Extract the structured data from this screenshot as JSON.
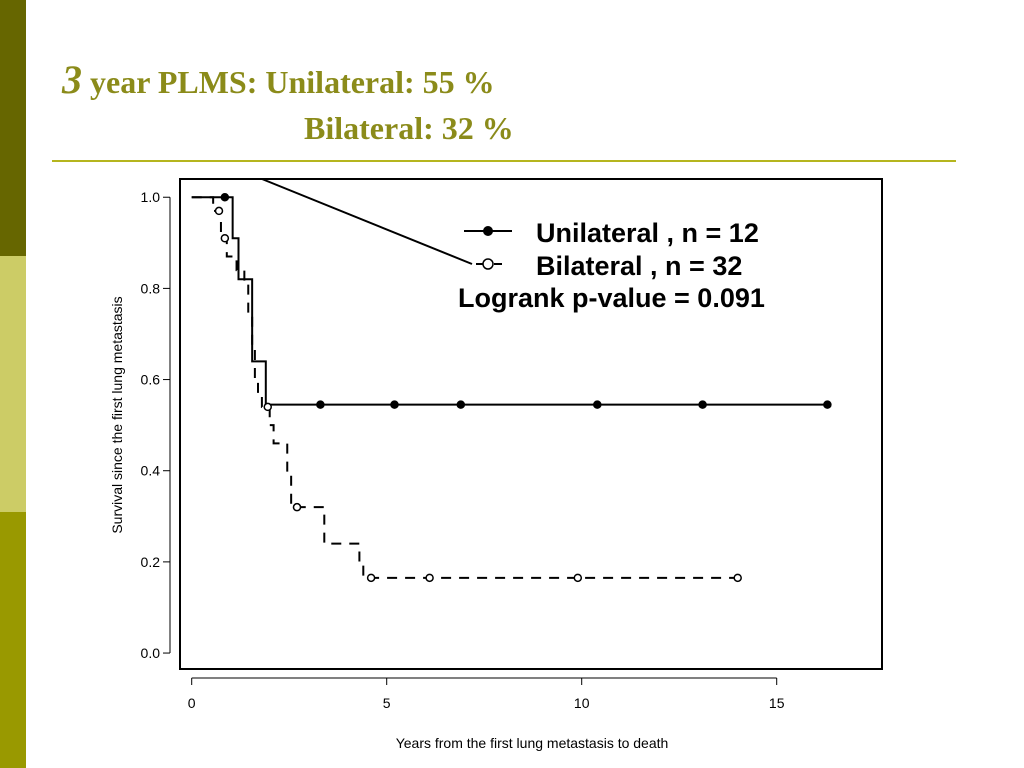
{
  "slide": {
    "title_number": "3",
    "title_line1": "year PLMS: Unilateral: 55 %",
    "title_line2": "Bilateral: 32 %",
    "colors": {
      "title": "#8b8b1a",
      "rule": "#b5b51e",
      "sidebar_dark": "#666600",
      "sidebar_light": "#cccc66",
      "sidebar_mid": "#999900"
    }
  },
  "chart_data": {
    "type": "line",
    "subtype": "kaplan-meier",
    "xlabel": "Years from the first lung metastasis to death",
    "ylabel": "Survival since the first lung metastasis",
    "xlim": [
      -0.3,
      17.7
    ],
    "ylim": [
      -0.035,
      1.04
    ],
    "xticks": [
      0,
      5,
      10,
      15
    ],
    "yticks": [
      0.0,
      0.2,
      0.4,
      0.6,
      0.8,
      1.0
    ],
    "xtick_labels": [
      "0",
      "5",
      "10",
      "15"
    ],
    "ytick_labels": [
      "0.0",
      "0.2",
      "0.4",
      "0.6",
      "0.8",
      "1.0"
    ],
    "grid": false,
    "legend": {
      "entries": [
        "Unilateral , n = 12",
        "Bilateral , n = 32"
      ],
      "annotation": "Logrank p-value = 0.091",
      "placement": "top-right"
    },
    "series": [
      {
        "name": "Unilateral , n = 12",
        "style": "solid",
        "marker": "filled-circle",
        "steps": [
          [
            0,
            1.0
          ],
          [
            1.05,
            0.91
          ],
          [
            1.2,
            0.82
          ],
          [
            1.55,
            0.64
          ],
          [
            1.9,
            0.545
          ],
          [
            16.3,
            0.545
          ]
        ],
        "censor_points": [
          [
            0.85,
            1.0
          ],
          [
            3.3,
            0.545
          ],
          [
            5.2,
            0.545
          ],
          [
            6.9,
            0.545
          ],
          [
            10.4,
            0.545
          ],
          [
            13.1,
            0.545
          ],
          [
            16.3,
            0.545
          ]
        ]
      },
      {
        "name": "Bilateral , n = 32",
        "style": "dashed",
        "marker": "open-circle",
        "steps": [
          [
            0,
            1.0
          ],
          [
            0.55,
            0.97
          ],
          [
            0.75,
            0.91
          ],
          [
            0.9,
            0.87
          ],
          [
            1.15,
            0.84
          ],
          [
            1.35,
            0.81
          ],
          [
            1.45,
            0.74
          ],
          [
            1.55,
            0.67
          ],
          [
            1.62,
            0.6
          ],
          [
            1.7,
            0.57
          ],
          [
            1.8,
            0.54
          ],
          [
            2.0,
            0.5
          ],
          [
            2.1,
            0.46
          ],
          [
            2.45,
            0.39
          ],
          [
            2.55,
            0.32
          ],
          [
            3.4,
            0.24
          ],
          [
            4.3,
            0.2
          ],
          [
            4.4,
            0.165
          ],
          [
            14.0,
            0.165
          ]
        ],
        "censor_points": [
          [
            0.7,
            0.97
          ],
          [
            0.85,
            0.91
          ],
          [
            1.95,
            0.54
          ],
          [
            2.7,
            0.32
          ],
          [
            4.6,
            0.165
          ],
          [
            6.1,
            0.165
          ],
          [
            9.9,
            0.165
          ],
          [
            14.0,
            0.165
          ]
        ]
      }
    ]
  }
}
